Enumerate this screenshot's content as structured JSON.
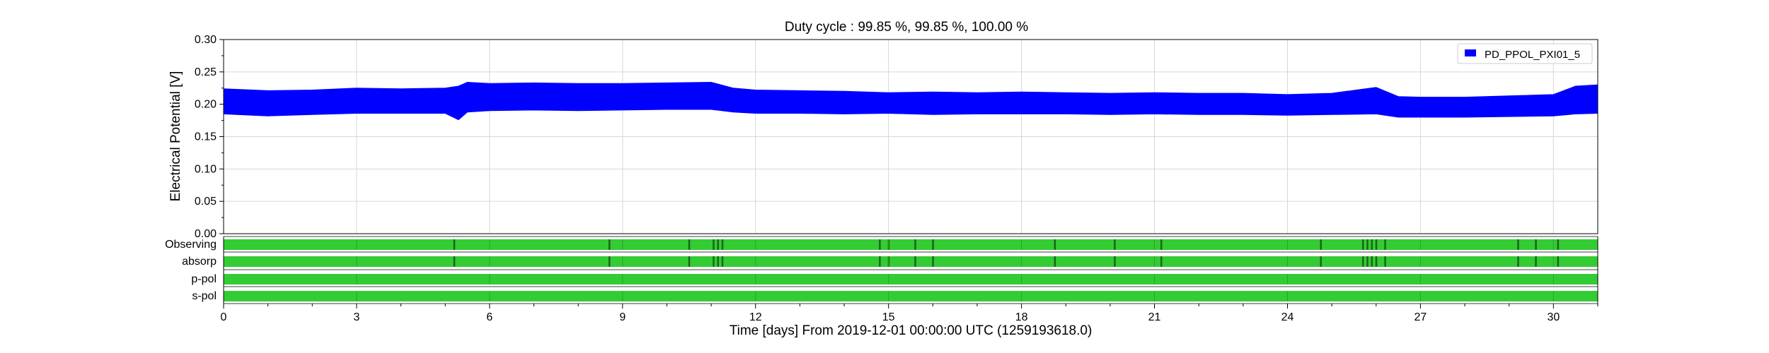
{
  "chart_data": {
    "type": "area",
    "title": "Duty cycle : 99.85 %, 99.85 %, 100.00 %",
    "xlabel": "Time [days] From 2019-12-01 00:00:00 UTC (1259193618.0)",
    "ylabel": "Electrical Potential [V]",
    "xlim": [
      0,
      31
    ],
    "ylim": [
      0,
      0.3
    ],
    "x_ticks": [
      0,
      3,
      6,
      9,
      12,
      15,
      18,
      21,
      24,
      27,
      30
    ],
    "y_ticks": [
      "0.00",
      "0.05",
      "0.10",
      "0.15",
      "0.20",
      "0.25",
      "0.30"
    ],
    "grid": true,
    "legend_position": "top-right",
    "series": [
      {
        "name": "PD_PPOL_PXI01_5",
        "color": "#0000ff",
        "x": [
          0,
          1,
          2,
          3,
          4,
          5,
          5.3,
          5.5,
          6,
          7,
          8,
          9,
          10,
          11,
          11.5,
          12,
          13,
          14,
          15,
          16,
          17,
          18,
          19,
          20,
          21,
          22,
          23,
          24,
          25,
          26,
          26.5,
          27,
          28,
          29,
          30,
          30.5,
          31
        ],
        "upper": [
          0.224,
          0.221,
          0.222,
          0.225,
          0.224,
          0.225,
          0.228,
          0.234,
          0.232,
          0.233,
          0.232,
          0.232,
          0.233,
          0.234,
          0.225,
          0.222,
          0.221,
          0.22,
          0.218,
          0.219,
          0.218,
          0.219,
          0.218,
          0.217,
          0.218,
          0.217,
          0.217,
          0.215,
          0.217,
          0.226,
          0.212,
          0.211,
          0.211,
          0.213,
          0.215,
          0.228,
          0.23
        ],
        "lower": [
          0.185,
          0.182,
          0.184,
          0.186,
          0.186,
          0.186,
          0.176,
          0.188,
          0.19,
          0.191,
          0.19,
          0.191,
          0.192,
          0.192,
          0.188,
          0.186,
          0.186,
          0.185,
          0.186,
          0.184,
          0.185,
          0.185,
          0.185,
          0.184,
          0.185,
          0.184,
          0.184,
          0.183,
          0.184,
          0.185,
          0.18,
          0.18,
          0.18,
          0.181,
          0.182,
          0.185,
          0.186
        ]
      }
    ],
    "segments": {
      "color": "#33cc33",
      "gap_color": "#1a661a",
      "rows": [
        {
          "name": "Observing",
          "gaps": [
            5.2,
            8.7,
            10.5,
            11.05,
            11.15,
            11.25,
            14.8,
            15.0,
            15.6,
            16.0,
            18.75,
            20.1,
            21.15,
            24.75,
            25.7,
            25.8,
            25.9,
            26.0,
            26.2,
            29.2,
            29.6,
            30.1
          ]
        },
        {
          "name": "absorp",
          "gaps": [
            5.2,
            8.7,
            10.5,
            11.05,
            11.15,
            11.25,
            14.8,
            15.0,
            15.6,
            16.0,
            18.75,
            20.1,
            21.15,
            24.75,
            25.7,
            25.8,
            25.9,
            26.0,
            26.2,
            29.2,
            29.6,
            30.1
          ]
        },
        {
          "name": "p-pol",
          "gaps": []
        },
        {
          "name": "s-pol",
          "gaps": []
        }
      ]
    }
  }
}
